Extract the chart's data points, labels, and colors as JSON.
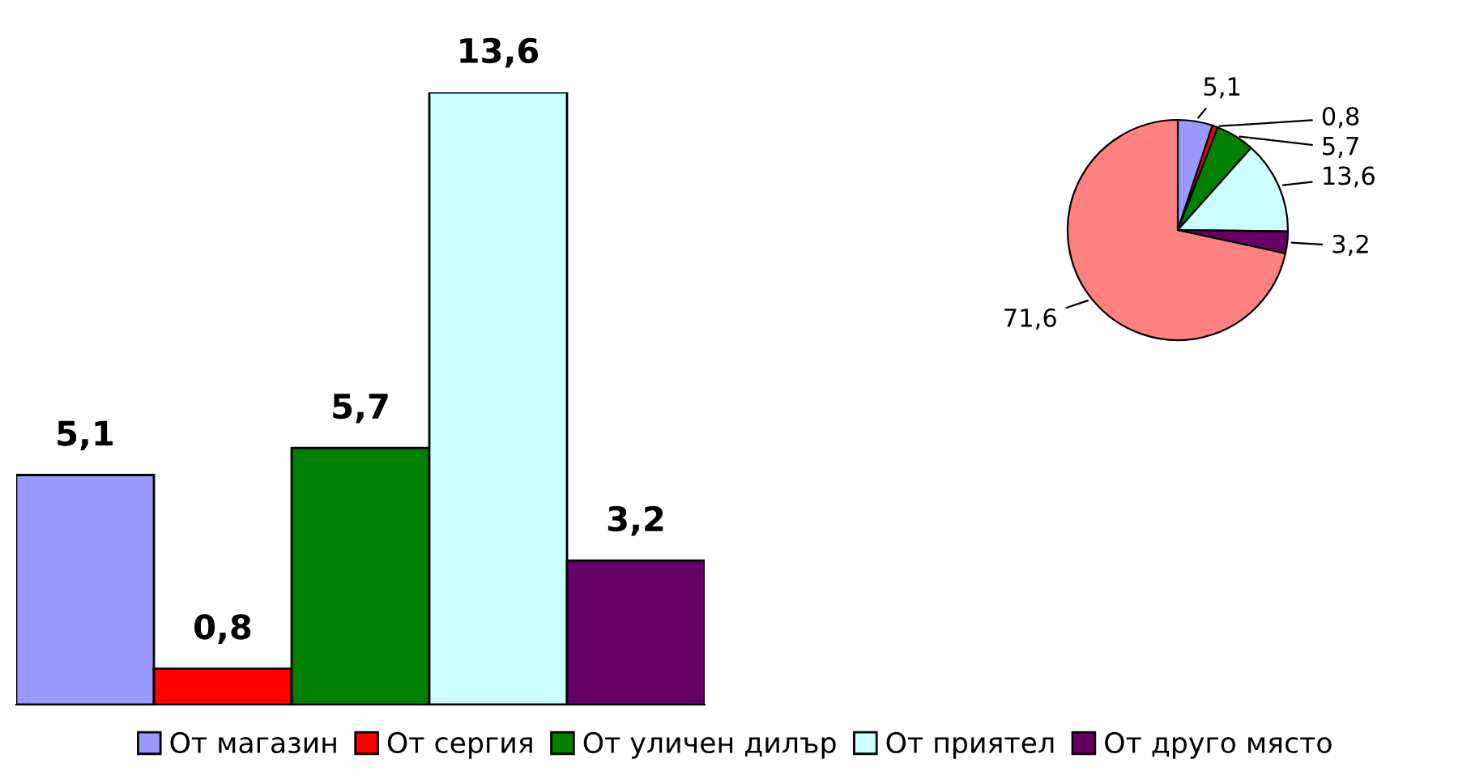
{
  "chart_data": [
    {
      "type": "bar",
      "categories": [
        null
      ],
      "legend": "bottom",
      "series": [
        {
          "name": "От магазин",
          "color": "#9999ff",
          "values": [
            5.1
          ],
          "value_labels": [
            "5,1"
          ]
        },
        {
          "name": "От сергия",
          "color": "#ff0000",
          "values": [
            0.8
          ],
          "value_labels": [
            "0,8"
          ]
        },
        {
          "name": "От уличен дилър",
          "color": "#008000",
          "values": [
            5.7
          ],
          "value_labels": [
            "5,7"
          ]
        },
        {
          "name": "От приятел",
          "color": "#ccffff",
          "values": [
            13.6
          ],
          "value_labels": [
            "13,6"
          ]
        },
        {
          "name": "От друго място",
          "color": "#660066",
          "values": [
            3.2
          ],
          "value_labels": [
            "3,2"
          ]
        }
      ]
    },
    {
      "type": "pie",
      "categories": [
        null,
        null,
        null,
        null,
        null,
        null
      ],
      "values": [
        5.1,
        0.8,
        5.7,
        13.6,
        3.2,
        71.6
      ],
      "value_labels": [
        "5,1",
        "0,8",
        "5,7",
        "13,6",
        "3,2",
        "71,6"
      ],
      "colors": [
        "#9999ff",
        "#ff0000",
        "#008000",
        "#ccffff",
        "#660066",
        "#ff8080"
      ]
    }
  ]
}
